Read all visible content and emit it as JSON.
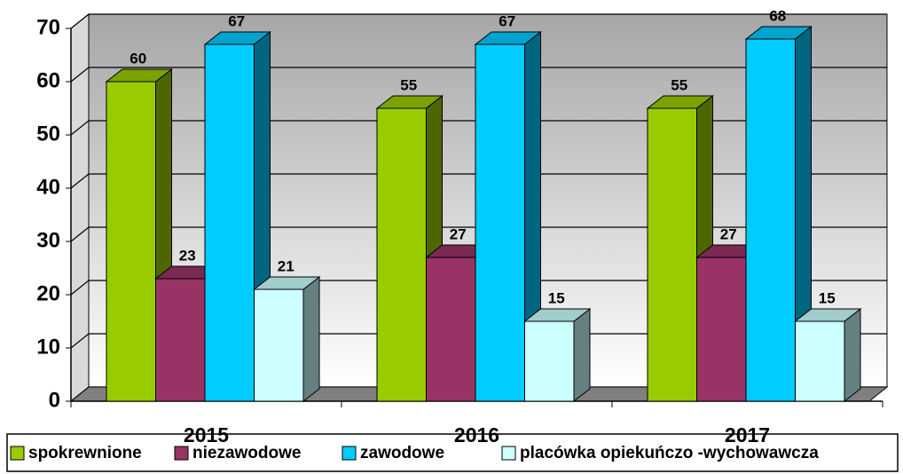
{
  "chart_data": {
    "type": "bar3d",
    "categories": [
      "2015",
      "2016",
      "2017"
    ],
    "series": [
      {
        "name": "spokrewnione",
        "color": "#99cc00",
        "values": [
          60,
          55,
          55
        ]
      },
      {
        "name": "niezawodowe",
        "color": "#993366",
        "values": [
          23,
          27,
          27
        ]
      },
      {
        "name": "zawodowe",
        "color": "#00ccff",
        "values": [
          67,
          67,
          68
        ]
      },
      {
        "name": "placówka opiekuńczo -wychowawcza",
        "color": "#ccffff",
        "values": [
          21,
          15,
          15
        ]
      }
    ],
    "ylim": [
      0,
      70
    ],
    "yticks": [
      0,
      10,
      20,
      30,
      40,
      50,
      60,
      70
    ],
    "grid": true,
    "legend": "bottom"
  }
}
